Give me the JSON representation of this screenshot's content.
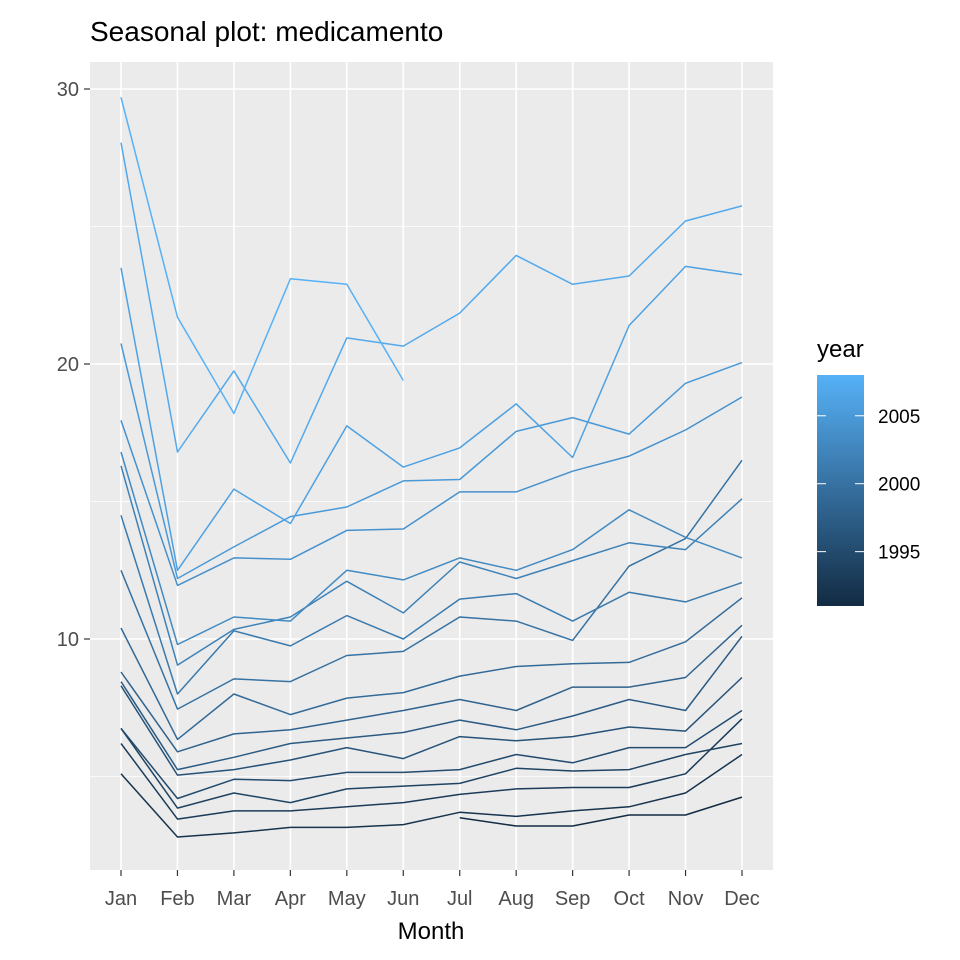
{
  "chart_data": {
    "type": "line",
    "title": "Seasonal plot: medicamento",
    "xlabel": "Month",
    "ylabel": "",
    "categories": [
      "Jan",
      "Feb",
      "Mar",
      "Apr",
      "May",
      "Jun",
      "Jul",
      "Aug",
      "Sep",
      "Oct",
      "Nov",
      "Dec"
    ],
    "ylim": [
      1.6,
      31.8
    ],
    "yticks": [
      10,
      20,
      30
    ],
    "grid": true,
    "legend": {
      "title": "year",
      "placement": "right",
      "type": "colorbar",
      "range": [
        1991,
        2008
      ],
      "ticks": [
        1995,
        2000,
        2005
      ],
      "low_color": "#132B43",
      "high_color": "#56B1F7"
    },
    "series": [
      {
        "name": "1991",
        "values": [
          null,
          null,
          null,
          null,
          null,
          null,
          3.5,
          3.2,
          3.2,
          3.6,
          3.6,
          4.25
        ]
      },
      {
        "name": "1992",
        "values": [
          5.1,
          2.8,
          2.95,
          3.15,
          3.15,
          3.25,
          3.7,
          3.55,
          3.75,
          3.9,
          4.4,
          5.8
        ]
      },
      {
        "name": "1993",
        "values": [
          6.2,
          3.45,
          3.75,
          3.75,
          3.9,
          4.05,
          4.35,
          4.55,
          4.6,
          4.6,
          5.1,
          7.1
        ]
      },
      {
        "name": "1994",
        "values": [
          6.75,
          3.85,
          4.4,
          4.05,
          4.55,
          4.65,
          4.75,
          5.3,
          5.2,
          5.25,
          5.8,
          6.2
        ]
      },
      {
        "name": "1995",
        "values": [
          6.75,
          4.2,
          4.9,
          4.85,
          5.15,
          5.15,
          5.25,
          5.8,
          5.5,
          6.05,
          6.05,
          7.4
        ]
      },
      {
        "name": "1996",
        "values": [
          8.3,
          5.05,
          5.25,
          5.6,
          6.05,
          5.65,
          6.45,
          6.3,
          6.45,
          6.8,
          6.65,
          8.6
        ]
      },
      {
        "name": "1997",
        "values": [
          8.45,
          5.25,
          5.7,
          6.2,
          6.4,
          6.6,
          7.05,
          6.7,
          7.2,
          7.8,
          7.4,
          10.1
        ]
      },
      {
        "name": "1998",
        "values": [
          8.8,
          5.9,
          6.55,
          6.7,
          7.05,
          7.4,
          7.8,
          7.4,
          8.25,
          8.25,
          8.6,
          10.5
        ]
      },
      {
        "name": "1999",
        "values": [
          10.4,
          6.35,
          8.0,
          7.25,
          7.85,
          8.05,
          8.65,
          9.0,
          9.1,
          9.15,
          9.9,
          11.5
        ]
      },
      {
        "name": "2000",
        "values": [
          12.5,
          7.45,
          8.55,
          8.45,
          9.4,
          9.55,
          10.8,
          10.65,
          9.95,
          12.65,
          13.65,
          16.5
        ]
      },
      {
        "name": "2001",
        "values": [
          14.5,
          8.0,
          10.3,
          9.75,
          10.85,
          10.0,
          11.45,
          11.65,
          10.65,
          11.7,
          11.35,
          12.05
        ]
      },
      {
        "name": "2002",
        "values": [
          16.3,
          9.05,
          10.35,
          10.8,
          12.1,
          10.95,
          12.8,
          12.2,
          12.85,
          13.5,
          13.25,
          15.1
        ]
      },
      {
        "name": "2003",
        "values": [
          16.8,
          9.8,
          10.8,
          10.65,
          12.5,
          12.15,
          12.95,
          12.5,
          13.25,
          14.7,
          13.7,
          12.95
        ]
      },
      {
        "name": "2004",
        "values": [
          17.95,
          11.95,
          12.95,
          12.9,
          13.95,
          14.0,
          15.35,
          15.35,
          16.1,
          16.65,
          17.6,
          18.8
        ]
      },
      {
        "name": "2005",
        "values": [
          20.75,
          12.2,
          13.35,
          14.45,
          14.8,
          15.75,
          15.8,
          17.55,
          18.05,
          17.45,
          19.3,
          20.05
        ]
      },
      {
        "name": "2006",
        "values": [
          23.5,
          12.5,
          15.45,
          14.2,
          17.75,
          16.25,
          16.95,
          18.55,
          16.6,
          21.4,
          23.55,
          23.25
        ]
      },
      {
        "name": "2007",
        "values": [
          28.05,
          16.8,
          19.75,
          16.4,
          20.95,
          20.65,
          21.85,
          23.95,
          22.9,
          23.2,
          25.2,
          25.75
        ]
      },
      {
        "name": "2008",
        "values": [
          29.7,
          21.7,
          18.2,
          23.1,
          22.9,
          19.4,
          null,
          null,
          null,
          null,
          null,
          null
        ]
      }
    ]
  }
}
